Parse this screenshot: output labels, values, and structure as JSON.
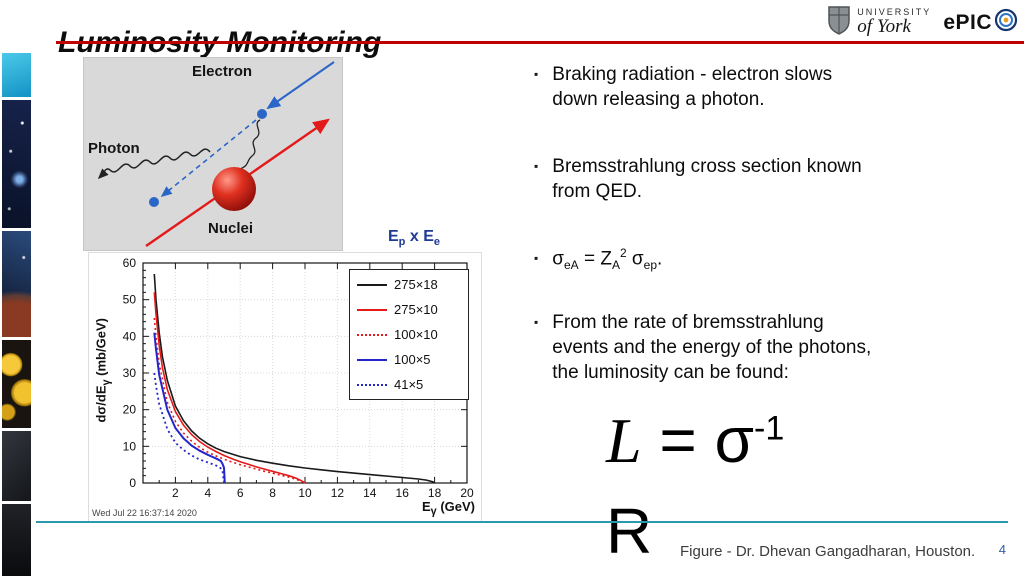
{
  "header": {
    "title": "Luminosity Monitoring"
  },
  "logos": {
    "york_top": "UNIVERSITY",
    "york_bottom": "of York",
    "epic": "ePIC"
  },
  "diagram": {
    "electron_label": "Electron",
    "photon_label": "Photon",
    "nuclei_label": "Nuclei"
  },
  "figure": {
    "title": {
      "t1": "E",
      "sub1": "p",
      "t2": " x E",
      "sub2": "e"
    },
    "ylabel": {
      "a": "dσ/dE",
      "sub": "γ",
      "b": " (mb/GeV)"
    },
    "xlabel": {
      "a": "E",
      "sub": "γ",
      "b": " (GeV)"
    },
    "timestamp": "Wed Jul 22 16:37:14 2020"
  },
  "bullets": {
    "b1": "Braking radiation - electron slows\ndown releasing a photon.",
    "b2": "Bremsstrahlung cross section known\nfrom QED.",
    "b3": {
      "s1": "σ",
      "sub1": "eA",
      "s2": " = Z",
      "sub2": "A",
      "sup2": "2",
      "s3": " σ",
      "sub3": "ep",
      "s4": "."
    },
    "b4": "From the rate of bremsstrahlung\nevents and the energy of the photons,\nthe luminosity can be found:"
  },
  "formula": {
    "lhs": "L",
    "mid": " = σ",
    "sup": "-1",
    "line2": "R"
  },
  "footer": {
    "credit": "Figure - Dr. Dhevan Gangadharan, Houston.",
    "page": "4"
  },
  "chart_data": {
    "type": "line",
    "title": "Ep x Ee",
    "xlabel": "Eγ (GeV)",
    "ylabel": "dσ/dEγ (mb/GeV)",
    "xlim": [
      0,
      20
    ],
    "ylim": [
      0,
      60
    ],
    "xticks": [
      2,
      4,
      6,
      8,
      10,
      12,
      14,
      16,
      18,
      20
    ],
    "yticks": [
      0,
      10,
      20,
      30,
      40,
      50,
      60
    ],
    "grid": true,
    "legend_position": "top-right",
    "timestamp": "Wed Jul 22 16:37:14 2020",
    "series": [
      {
        "name": "275×18",
        "color": "#1a1a1a",
        "style": "solid",
        "width": 1.6,
        "points": [
          [
            0.7,
            57
          ],
          [
            0.8,
            50
          ],
          [
            0.9,
            45.5
          ],
          [
            1,
            41
          ],
          [
            1.2,
            34.5
          ],
          [
            1.5,
            28
          ],
          [
            2,
            21
          ],
          [
            2.5,
            17
          ],
          [
            3,
            14.2
          ],
          [
            3.5,
            12.2
          ],
          [
            4,
            10.7
          ],
          [
            4.5,
            9.5
          ],
          [
            5,
            8.6
          ],
          [
            6,
            7.2
          ],
          [
            7,
            6.2
          ],
          [
            8,
            5.4
          ],
          [
            9,
            4.7
          ],
          [
            10,
            4.1
          ],
          [
            11,
            3.6
          ],
          [
            12,
            3.1
          ],
          [
            13,
            2.7
          ],
          [
            14,
            2.3
          ],
          [
            15,
            1.9
          ],
          [
            16,
            1.5
          ],
          [
            17,
            1.1
          ],
          [
            17.5,
            0.8
          ],
          [
            17.9,
            0.3
          ],
          [
            18,
            0
          ]
        ]
      },
      {
        "name": "275×10",
        "color": "#e31a1a",
        "style": "solid",
        "width": 1.6,
        "points": [
          [
            0.7,
            52
          ],
          [
            0.8,
            46
          ],
          [
            1,
            37.5
          ],
          [
            1.2,
            31.5
          ],
          [
            1.5,
            25.5
          ],
          [
            2,
            19.5
          ],
          [
            2.5,
            15.8
          ],
          [
            3,
            13.2
          ],
          [
            3.5,
            11.3
          ],
          [
            4,
            9.8
          ],
          [
            4.5,
            8.6
          ],
          [
            5,
            7.5
          ],
          [
            5.5,
            6.6
          ],
          [
            6,
            5.8
          ],
          [
            6.5,
            5.1
          ],
          [
            7,
            4.4
          ],
          [
            7.5,
            3.8
          ],
          [
            8,
            3.2
          ],
          [
            8.5,
            2.6
          ],
          [
            9,
            2
          ],
          [
            9.4,
            1.4
          ],
          [
            9.7,
            0.8
          ],
          [
            9.9,
            0.3
          ],
          [
            10,
            0
          ]
        ]
      },
      {
        "name": "100×10",
        "color": "#e31a1a",
        "style": "dotted",
        "width": 1.6,
        "points": [
          [
            0.7,
            45
          ],
          [
            0.8,
            40
          ],
          [
            1,
            32.5
          ],
          [
            1.5,
            22
          ],
          [
            2,
            16.8
          ],
          [
            2.5,
            13.6
          ],
          [
            3,
            11.4
          ],
          [
            3.5,
            9.7
          ],
          [
            4,
            8.4
          ],
          [
            4.5,
            7.4
          ],
          [
            5,
            6.5
          ],
          [
            5.5,
            5.7
          ],
          [
            6,
            5
          ],
          [
            6.5,
            4.4
          ],
          [
            7,
            3.8
          ],
          [
            7.5,
            3.2
          ],
          [
            8,
            2.7
          ],
          [
            8.5,
            2.1
          ],
          [
            9,
            1.6
          ],
          [
            9.4,
            1.1
          ],
          [
            9.7,
            0.6
          ],
          [
            10,
            0
          ]
        ]
      },
      {
        "name": "100×5",
        "color": "#2525cc",
        "style": "solid",
        "width": 2,
        "points": [
          [
            0.7,
            41
          ],
          [
            0.8,
            36.5
          ],
          [
            1,
            29.5
          ],
          [
            1.5,
            20
          ],
          [
            2,
            15
          ],
          [
            2.5,
            12.2
          ],
          [
            3,
            10.2
          ],
          [
            3.5,
            8.8
          ],
          [
            4,
            7.7
          ],
          [
            4.3,
            7.1
          ],
          [
            4.6,
            6.5
          ],
          [
            4.8,
            6
          ],
          [
            4.9,
            5.3
          ],
          [
            5,
            4.2
          ],
          [
            5.05,
            0
          ]
        ]
      },
      {
        "name": "41×5",
        "color": "#2525cc",
        "style": "dotted",
        "width": 1.8,
        "points": [
          [
            0.7,
            30
          ],
          [
            0.8,
            26.5
          ],
          [
            1,
            21.5
          ],
          [
            1.5,
            14.7
          ],
          [
            2,
            11
          ],
          [
            2.5,
            9
          ],
          [
            3,
            7.5
          ],
          [
            3.5,
            6.4
          ],
          [
            4,
            5.6
          ],
          [
            4.4,
            5
          ],
          [
            4.7,
            4.4
          ],
          [
            4.9,
            3.6
          ],
          [
            5,
            0
          ]
        ]
      }
    ]
  }
}
